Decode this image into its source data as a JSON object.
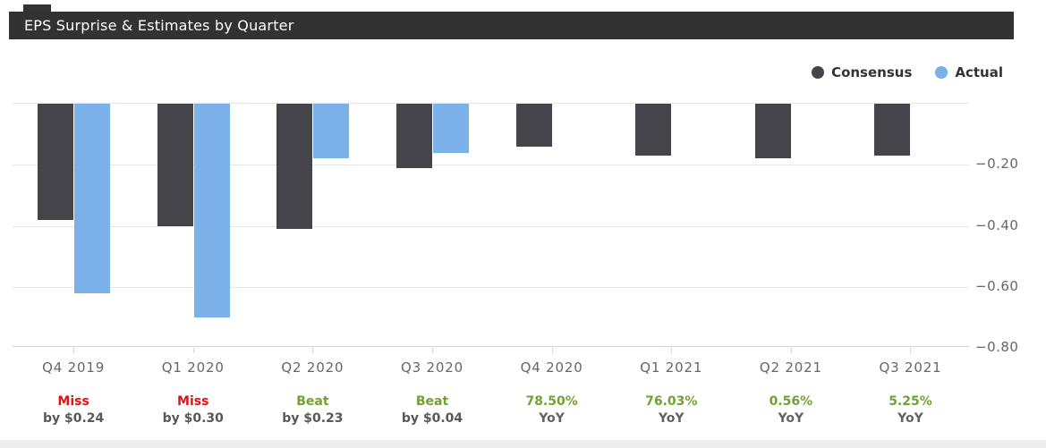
{
  "header": {
    "title": "EPS Surprise & Estimates by Quarter"
  },
  "legend": {
    "items": [
      {
        "label": "Consensus",
        "color": "#45444b"
      },
      {
        "label": "Actual",
        "color": "#7ab1e8"
      }
    ]
  },
  "chart_data": {
    "type": "bar",
    "title": "EPS Surprise & Estimates by Quarter",
    "categories": [
      "Q4 2019",
      "Q1 2020",
      "Q2 2020",
      "Q3 2020",
      "Q4 2020",
      "Q1 2021",
      "Q2 2021",
      "Q3 2021"
    ],
    "series": [
      {
        "name": "Consensus",
        "color": "#45444b",
        "values": [
          -0.38,
          -0.4,
          -0.41,
          -0.21,
          -0.14,
          -0.17,
          -0.18,
          -0.17
        ]
      },
      {
        "name": "Actual",
        "color": "#7ab1e8",
        "values": [
          -0.62,
          -0.7,
          -0.18,
          -0.16,
          null,
          null,
          null,
          null
        ]
      }
    ],
    "xlabel": "",
    "ylabel": "",
    "ylim": [
      -0.8,
      0
    ],
    "yticks": [
      {
        "label": "−0.20",
        "value": -0.2
      },
      {
        "label": "−0.40",
        "value": -0.4
      },
      {
        "label": "−0.60",
        "value": -0.6
      },
      {
        "label": "−0.80",
        "value": -0.8
      }
    ],
    "grid": true,
    "legend_position": "top-right",
    "annotations": [
      {
        "type": "miss",
        "line1": "Miss",
        "line2": "by $0.24"
      },
      {
        "type": "miss",
        "line1": "Miss",
        "line2": "by $0.30"
      },
      {
        "type": "beat",
        "line1": "Beat",
        "line2": "by $0.23"
      },
      {
        "type": "beat",
        "line1": "Beat",
        "line2": "by $0.04"
      },
      {
        "type": "yoy",
        "line1": "78.50%",
        "line2": "YoY"
      },
      {
        "type": "yoy",
        "line1": "76.03%",
        "line2": "YoY"
      },
      {
        "type": "yoy",
        "line1": "0.56%",
        "line2": "YoY"
      },
      {
        "type": "yoy",
        "line1": "5.25%",
        "line2": "YoY"
      }
    ]
  },
  "colors": {
    "header_bg": "#323232",
    "header_text": "#ffffff",
    "consensus": "#45444b",
    "actual": "#7ab1e8",
    "grid": "#e6e6e6",
    "axis_line": "#ccd6eb",
    "axis_label": "#666666",
    "miss_red": "#e11212",
    "beat_green": "#72a133",
    "detail_text": "#58585a",
    "footer_strip": "#ededed"
  }
}
